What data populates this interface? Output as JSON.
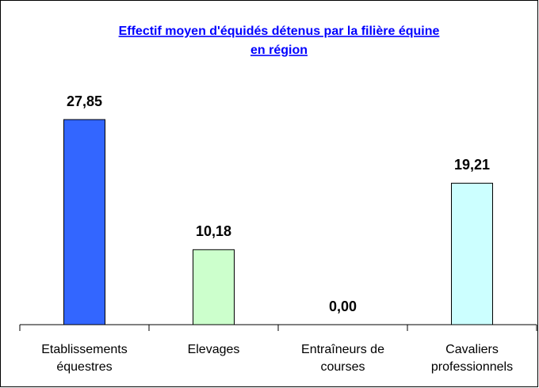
{
  "chart_data": {
    "type": "bar",
    "title": [
      "Effectif moyen d'équidés détenus par la filière équine",
      "en région"
    ],
    "categories": [
      "Etablissements équestres",
      "Elevages",
      "Entraîneurs de courses",
      "Cavaliers professionnels"
    ],
    "values": [
      27.85,
      10.18,
      0,
      19.21
    ],
    "value_labels": [
      "27,85",
      "10,18",
      "0,00",
      "19,21"
    ],
    "colors": [
      "#3366ff",
      "#ccffcc",
      "#ffffcc",
      "#ccffff"
    ]
  }
}
